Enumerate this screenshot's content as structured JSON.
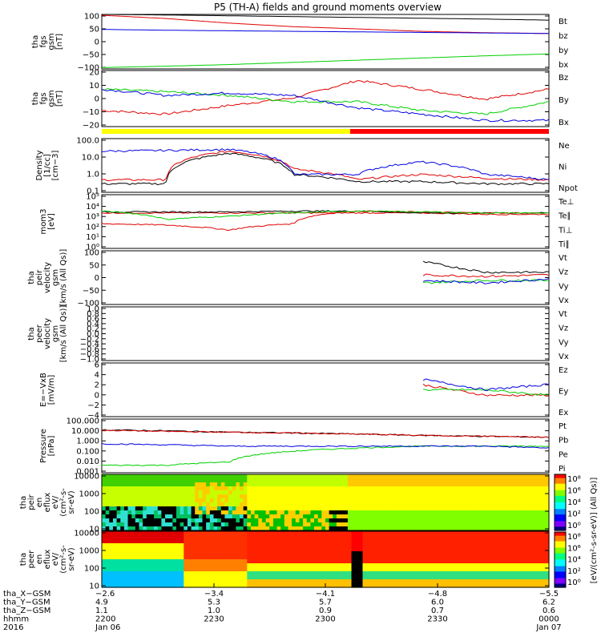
{
  "title": "P5 (TH-A) fields and ground moments overview",
  "colors": {
    "black": "#000000",
    "red": "#e00000",
    "blue": "#0000e0",
    "green": "#00d000",
    "yellow": "#ffff00",
    "bar_red": "#ff0000"
  },
  "panels": [
    {
      "id": "p1",
      "ylabel": [
        "tha",
        "fgs",
        "gsm",
        "[nT]"
      ],
      "yticks": [
        "100",
        "50",
        "0",
        "−50",
        "−100"
      ],
      "legend": [
        {
          "text": "Bt",
          "color": "#000000"
        },
        {
          "text": "bz",
          "color": "#e00000"
        },
        {
          "text": "by",
          "color": "#00d000"
        },
        {
          "text": "bx",
          "color": "#0000e0"
        }
      ]
    },
    {
      "id": "p2",
      "ylabel": [
        "tha",
        "fgs",
        "gsm",
        "[nT]"
      ],
      "yticks": [
        "20",
        "10",
        "0",
        "−10",
        "−20"
      ],
      "legend": [
        {
          "text": "Bz",
          "color": "#e00000"
        },
        {
          "text": "By",
          "color": "#00d000"
        },
        {
          "text": "Bx",
          "color": "#0000e0"
        }
      ]
    },
    {
      "id": "p3",
      "ylabel": [
        "Density",
        "[1/cc]",
        "[cm−3]"
      ],
      "yticks": [
        "100.0",
        "10.0",
        "1.0",
        "0.1"
      ],
      "legend": [
        {
          "text": "Ne",
          "color": "#e00000"
        },
        {
          "text": "Ni",
          "color": "#000000"
        },
        {
          "text": "Npot",
          "color": "#0000e0"
        }
      ]
    },
    {
      "id": "p4",
      "ylabel": [
        "mom3",
        "[eV]"
      ],
      "yticks": [
        "10⁵",
        "10⁴",
        "10³",
        "10²",
        "10¹",
        "10⁰"
      ],
      "legend": [
        {
          "text": "Te⊥",
          "color": "#e00000"
        },
        {
          "text": "Te∥",
          "color": "#000000"
        },
        {
          "text": "Ti⊥",
          "color": "#e00000"
        },
        {
          "text": "Ti∥",
          "color": "#00d000"
        }
      ]
    },
    {
      "id": "p5",
      "ylabel": [
        "tha",
        "peir",
        "velocity",
        "gsm",
        "[km/s (All Qs)]"
      ],
      "yticks": [
        "100",
        "50",
        "0",
        "−50",
        "−100"
      ],
      "legend": [
        {
          "text": "Vt",
          "color": "#000000"
        },
        {
          "text": "Vz",
          "color": "#e00000"
        },
        {
          "text": "Vy",
          "color": "#00d000"
        },
        {
          "text": "Vx",
          "color": "#0000e0"
        }
      ]
    },
    {
      "id": "p6",
      "ylabel": [
        "tha",
        "peer",
        "velocity",
        "gsm",
        "[km/s (All Qs)]"
      ],
      "yticks": [
        "1.0",
        "0.8",
        "0.6",
        "0.4",
        "0.2",
        "0.0",
        "−0.2",
        "−0.4",
        "−0.6",
        "−0.8",
        "−1.0"
      ],
      "legend": [
        {
          "text": "Vt",
          "color": "#000000"
        },
        {
          "text": "Vz",
          "color": "#e00000"
        },
        {
          "text": "Vy",
          "color": "#00d000"
        },
        {
          "text": "Vx",
          "color": "#0000e0"
        }
      ]
    },
    {
      "id": "p7",
      "ylabel": [
        "E=−VxB",
        "[mV/m]"
      ],
      "yticks": [
        "6",
        "4",
        "2",
        "0",
        "−2",
        "−4"
      ],
      "legend": [
        {
          "text": "Ez",
          "color": "#e00000"
        },
        {
          "text": "Ey",
          "color": "#00d000"
        },
        {
          "text": "Ex",
          "color": "#0000e0"
        }
      ]
    },
    {
      "id": "p8",
      "ylabel": [
        "Pressure",
        "[nPa]"
      ],
      "yticks": [
        "100.000",
        "10.000",
        "1.000",
        "0.100",
        "0.010",
        "0.001"
      ],
      "legend": [
        {
          "text": "Pt",
          "color": "#000000"
        },
        {
          "text": "Pb",
          "color": "#e00000"
        },
        {
          "text": "Pe",
          "color": "#00d000"
        },
        {
          "text": "Pi",
          "color": "#0000e0"
        }
      ]
    },
    {
      "id": "p9",
      "ylabel": [
        "tha",
        "peir",
        "en",
        "eflux",
        "eV/",
        "(cm²-s-",
        "sr-eV)"
      ],
      "yticks": [
        "10000",
        "1000",
        "100",
        "10"
      ]
    },
    {
      "id": "p10",
      "ylabel": [
        "tha",
        "peer",
        "en",
        "eflux",
        "eV/",
        "(cm²-s-",
        "sr-eV)"
      ],
      "yticks": [
        "10000",
        "1000",
        "100",
        "10"
      ]
    }
  ],
  "colorbar": {
    "label": "[eV/(cm²-s-sr-eV)] (All Qs)]",
    "top_ticks": [
      "10⁸",
      "10⁶",
      "10⁴",
      "10²",
      "10⁰"
    ],
    "bottom_ticks": [
      "10⁸",
      "10⁶",
      "10⁴",
      "10²",
      "10⁰"
    ]
  },
  "xaxis": {
    "rows": [
      {
        "label": "tha_X−GSM",
        "values": [
          "−2.6",
          "−3.4",
          "−4.1",
          "−4.8",
          "−5.5"
        ]
      },
      {
        "label": "tha_Y−GSM",
        "values": [
          "4.9",
          "5.3",
          "5.7",
          "6.0",
          "6.2"
        ]
      },
      {
        "label": "tha_Z−GSM",
        "values": [
          "1.1",
          "1.0",
          "0.9",
          "0.7",
          "0.6"
        ]
      },
      {
        "label": "hhmm",
        "values": [
          "2200",
          "2230",
          "2300",
          "2330",
          "0000"
        ]
      },
      {
        "label": "2016",
        "values": [
          "Jan 06",
          "",
          "",
          "",
          "Jan 07"
        ]
      }
    ]
  },
  "chart_data": [
    {
      "type": "line",
      "panel": "p1",
      "ylim": [
        -100,
        100
      ],
      "series": [
        {
          "name": "Bt",
          "values": [
            100,
            98,
            95,
            92,
            89,
            86,
            83,
            79
          ]
        },
        {
          "name": "bz",
          "values": [
            97,
            85,
            68,
            55,
            47,
            38,
            33,
            30
          ]
        },
        {
          "name": "by",
          "values": [
            -95,
            -90,
            -84,
            -76,
            -68,
            -60,
            -52,
            -45
          ]
        },
        {
          "name": "bx",
          "values": [
            45,
            42,
            40,
            38,
            36,
            34,
            32,
            30
          ]
        }
      ]
    },
    {
      "type": "line",
      "panel": "p2",
      "ylim": [
        -25,
        20
      ],
      "series": [
        {
          "name": "Bz",
          "values": [
            -12,
            -15,
            -8,
            -2,
            12,
            5,
            -3,
            5
          ]
        },
        {
          "name": "By",
          "values": [
            5,
            3,
            0,
            -5,
            -5,
            -12,
            -15,
            -5
          ]
        },
        {
          "name": "Bx",
          "values": [
            5,
            0,
            2,
            0,
            -10,
            -15,
            -20,
            -20
          ]
        }
      ]
    },
    {
      "type": "line",
      "panel": "p3",
      "yscale": "log",
      "ylim": [
        0.1,
        100
      ],
      "series": [
        {
          "name": "Ne",
          "values": [
            0.5,
            0.5,
            20,
            2,
            0.5,
            1,
            0.6,
            0.5
          ]
        },
        {
          "name": "Ni",
          "values": [
            0.3,
            0.3,
            15,
            1,
            0.4,
            0.4,
            0.3,
            0.3
          ]
        },
        {
          "name": "Npot",
          "values": [
            20,
            22,
            25,
            1,
            1,
            5,
            1,
            0.5
          ]
        }
      ]
    },
    {
      "type": "line",
      "panel": "p4",
      "yscale": "log",
      "ylim": [
        1,
        100000
      ],
      "series": [
        {
          "name": "Te⊥",
          "values": [
            2000,
            2000,
            2000,
            2000,
            2000,
            2000,
            1500,
            1500
          ]
        },
        {
          "name": "Te∥",
          "values": [
            2500,
            2500,
            2500,
            3000,
            3000,
            2000,
            2000,
            2000
          ]
        },
        {
          "name": "Ti⊥",
          "values": [
            200,
            150,
            50,
            200,
            3000,
            2500,
            2000,
            2000
          ]
        },
        {
          "name": "Ti∥",
          "values": [
            3000,
            500,
            1000,
            2000,
            3000,
            2500,
            2000,
            2000
          ]
        }
      ]
    },
    {
      "type": "line",
      "panel": "p5",
      "ylim": [
        -100,
        100
      ],
      "series": [
        {
          "name": "Vt",
          "values": [
            null,
            null,
            null,
            null,
            null,
            60,
            20,
            20
          ]
        },
        {
          "name": "Vz",
          "values": [
            null,
            null,
            null,
            null,
            null,
            10,
            5,
            10
          ]
        },
        {
          "name": "Vy",
          "values": [
            null,
            null,
            null,
            null,
            null,
            -20,
            -10,
            -10
          ]
        },
        {
          "name": "Vx",
          "values": [
            null,
            null,
            null,
            null,
            null,
            -10,
            -20,
            -5
          ]
        }
      ]
    },
    {
      "type": "line",
      "panel": "p7",
      "ylim": [
        -4,
        6
      ],
      "series": [
        {
          "name": "Ez",
          "values": [
            null,
            null,
            null,
            null,
            null,
            2,
            0,
            0
          ]
        },
        {
          "name": "Ey",
          "values": [
            null,
            null,
            null,
            null,
            null,
            1,
            1,
            0
          ]
        },
        {
          "name": "Ex",
          "values": [
            null,
            null,
            null,
            null,
            null,
            3,
            1,
            2
          ]
        }
      ]
    },
    {
      "type": "line",
      "panel": "p8",
      "yscale": "log",
      "ylim": [
        0.001,
        100
      ],
      "series": [
        {
          "name": "Pt",
          "values": [
            10,
            8,
            6,
            5,
            4,
            3,
            2.5,
            2
          ]
        },
        {
          "name": "Pb",
          "values": [
            9,
            7,
            6,
            5,
            4,
            3,
            2.5,
            2
          ]
        },
        {
          "name": "Pe",
          "values": [
            0.005,
            0.005,
            0.01,
            0.1,
            0.2,
            0.3,
            0.3,
            0.3
          ]
        },
        {
          "name": "Pi",
          "values": [
            0.5,
            0.4,
            0.3,
            0.3,
            0.3,
            0.3,
            0.3,
            0.2
          ]
        }
      ]
    }
  ]
}
